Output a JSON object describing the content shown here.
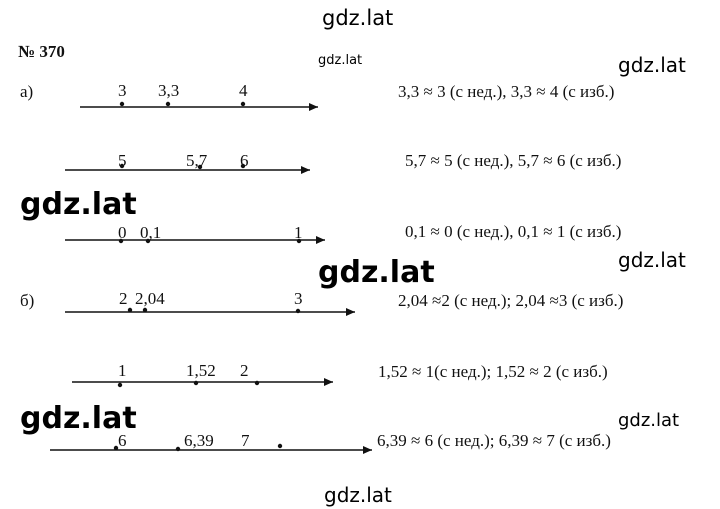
{
  "number": "№ 370",
  "watermarks": [
    "gdz.lat",
    "gdz.lat",
    "gdz.lat",
    "gdz.lat",
    "gdz.lat",
    "gdz.lat",
    "gdz.lat",
    "gdz.lat",
    "gdz.lat"
  ],
  "parts": [
    {
      "label": "а)",
      "rows": [
        {
          "ticks": [
            "3",
            "3,3",
            "4"
          ],
          "text": "3,3 ≈ 3 (с нед.), 3,3 ≈ 4 (с изб.)"
        },
        {
          "ticks": [
            "5",
            "5,7",
            "6"
          ],
          "text": "5,7 ≈ 5 (с нед.), 5,7 ≈ 6 (с изб.)"
        },
        {
          "ticks": [
            "0",
            "0,1",
            "1"
          ],
          "text": "0,1 ≈ 0 (с нед.), 0,1 ≈ 1 (с изб.)"
        }
      ]
    },
    {
      "label": "б)",
      "rows": [
        {
          "ticks": [
            "2",
            "2,04",
            "3"
          ],
          "text": "2,04 ≈2 (с нед.); 2,04 ≈3 (с изб.)"
        },
        {
          "ticks": [
            "1",
            "1,52",
            "2"
          ],
          "text": "1,52 ≈ 1(с нед.); 1,52 ≈ 2 (с изб.)"
        },
        {
          "ticks": [
            "6",
            "6,39",
            "7"
          ],
          "text": "6,39 ≈ 6 (с нед.); 6,39 ≈ 7 (с изб.)"
        }
      ]
    }
  ]
}
